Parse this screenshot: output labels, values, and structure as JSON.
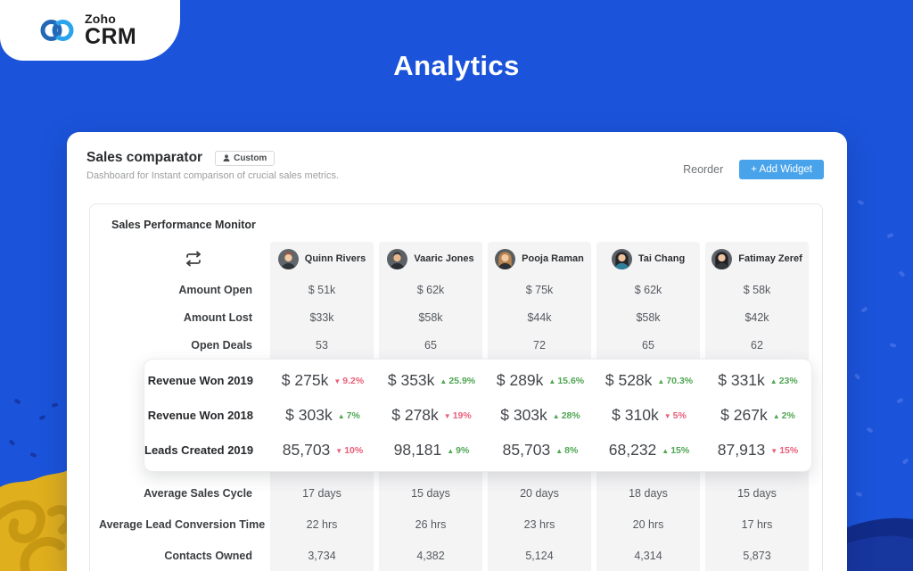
{
  "brand": {
    "zoho": "Zoho",
    "crm": "CRM"
  },
  "page_title": "Analytics",
  "widget": {
    "title": "Sales comparator",
    "badge": "Custom",
    "subtitle": "Dashboard for Instant comparison of crucial sales metrics.",
    "reorder_label": "Reorder",
    "add_widget_label": "+ Add Widget"
  },
  "monitor": {
    "title": "Sales Performance Monitor",
    "people": [
      {
        "name": "Quinn Rivers",
        "avatar": {
          "bg": "#61666b",
          "skin": "#f2c9a3",
          "hair": "#b5502c",
          "shirt": "#30353a",
          "long_hair": false
        }
      },
      {
        "name": "Vaaric Jones",
        "avatar": {
          "bg": "#5c6165",
          "skin": "#e9b98c",
          "hair": "#2e2e30",
          "shirt": "#2b2f33",
          "long_hair": false
        }
      },
      {
        "name": "Pooja Raman",
        "avatar": {
          "bg": "#585d61",
          "skin": "#f2c9a3",
          "hair": "#b8834d",
          "shirt": "#2d3135",
          "long_hair": true
        }
      },
      {
        "name": "Tai Chang",
        "avatar": {
          "bg": "#5a5f63",
          "skin": "#f0c29c",
          "hair": "#26262a",
          "shirt": "#2f7f9a",
          "long_hair": true
        }
      },
      {
        "name": "Fatimay Zeref",
        "avatar": {
          "bg": "#5c6165",
          "skin": "#efc5a0",
          "hair": "#222226",
          "shirt": "#34383c",
          "long_hair": true
        }
      }
    ],
    "rows_top": [
      {
        "label": "Amount Open",
        "values": [
          "$ 51k",
          "$ 62k",
          "$ 75k",
          "$ 62k",
          "$ 58k"
        ]
      },
      {
        "label": "Amount Lost",
        "values": [
          "$33k",
          "$58k",
          "$44k",
          "$58k",
          "$42k"
        ]
      },
      {
        "label": "Open Deals",
        "values": [
          "53",
          "65",
          "72",
          "65",
          "62"
        ]
      }
    ],
    "rows_highlight": [
      {
        "label": "Revenue Won 2019",
        "values": [
          {
            "value": "$ 275k",
            "change": "9.2%",
            "dir": "down"
          },
          {
            "value": "$ 353k",
            "change": "25.9%",
            "dir": "up"
          },
          {
            "value": "$ 289k",
            "change": "15.6%",
            "dir": "up"
          },
          {
            "value": "$ 528k",
            "change": "70.3%",
            "dir": "up"
          },
          {
            "value": "$ 331k",
            "change": "23%",
            "dir": "up"
          }
        ]
      },
      {
        "label": "Revenue Won 2018",
        "values": [
          {
            "value": "$ 303k",
            "change": "7%",
            "dir": "up"
          },
          {
            "value": "$ 278k",
            "change": "19%",
            "dir": "down"
          },
          {
            "value": "$ 303k",
            "change": "28%",
            "dir": "up"
          },
          {
            "value": "$ 310k",
            "change": "5%",
            "dir": "down"
          },
          {
            "value": "$ 267k",
            "change": "2%",
            "dir": "up"
          }
        ]
      },
      {
        "label": "Leads Created 2019",
        "values": [
          {
            "value": "85,703",
            "change": "10%",
            "dir": "down"
          },
          {
            "value": "98,181",
            "change": "9%",
            "dir": "up"
          },
          {
            "value": "85,703",
            "change": "8%",
            "dir": "up"
          },
          {
            "value": "68,232",
            "change": "15%",
            "dir": "up"
          },
          {
            "value": "87,913",
            "change": "15%",
            "dir": "down"
          }
        ]
      }
    ],
    "rows_bottom": [
      {
        "label": "Average Sales Cycle",
        "values": [
          "17 days",
          "15 days",
          "20 days",
          "18 days",
          "15 days"
        ]
      },
      {
        "label": "Average Lead Conversion Time",
        "values": [
          "22 hrs",
          "26 hrs",
          "23 hrs",
          "20 hrs",
          "17 hrs"
        ]
      },
      {
        "label": "Contacts Owned",
        "values": [
          "3,734",
          "4,382",
          "5,124",
          "4,314",
          "5,873"
        ]
      }
    ]
  },
  "colors": {
    "background_blue": "#1b54da",
    "accent_button_blue": "#48a3eb",
    "positive_green": "#4fa653",
    "negative_red": "#e85f78",
    "column_stripe_gray": "#f4f4f5",
    "deco_yellow": "#e0af1d",
    "deco_navy": "#112c88"
  }
}
